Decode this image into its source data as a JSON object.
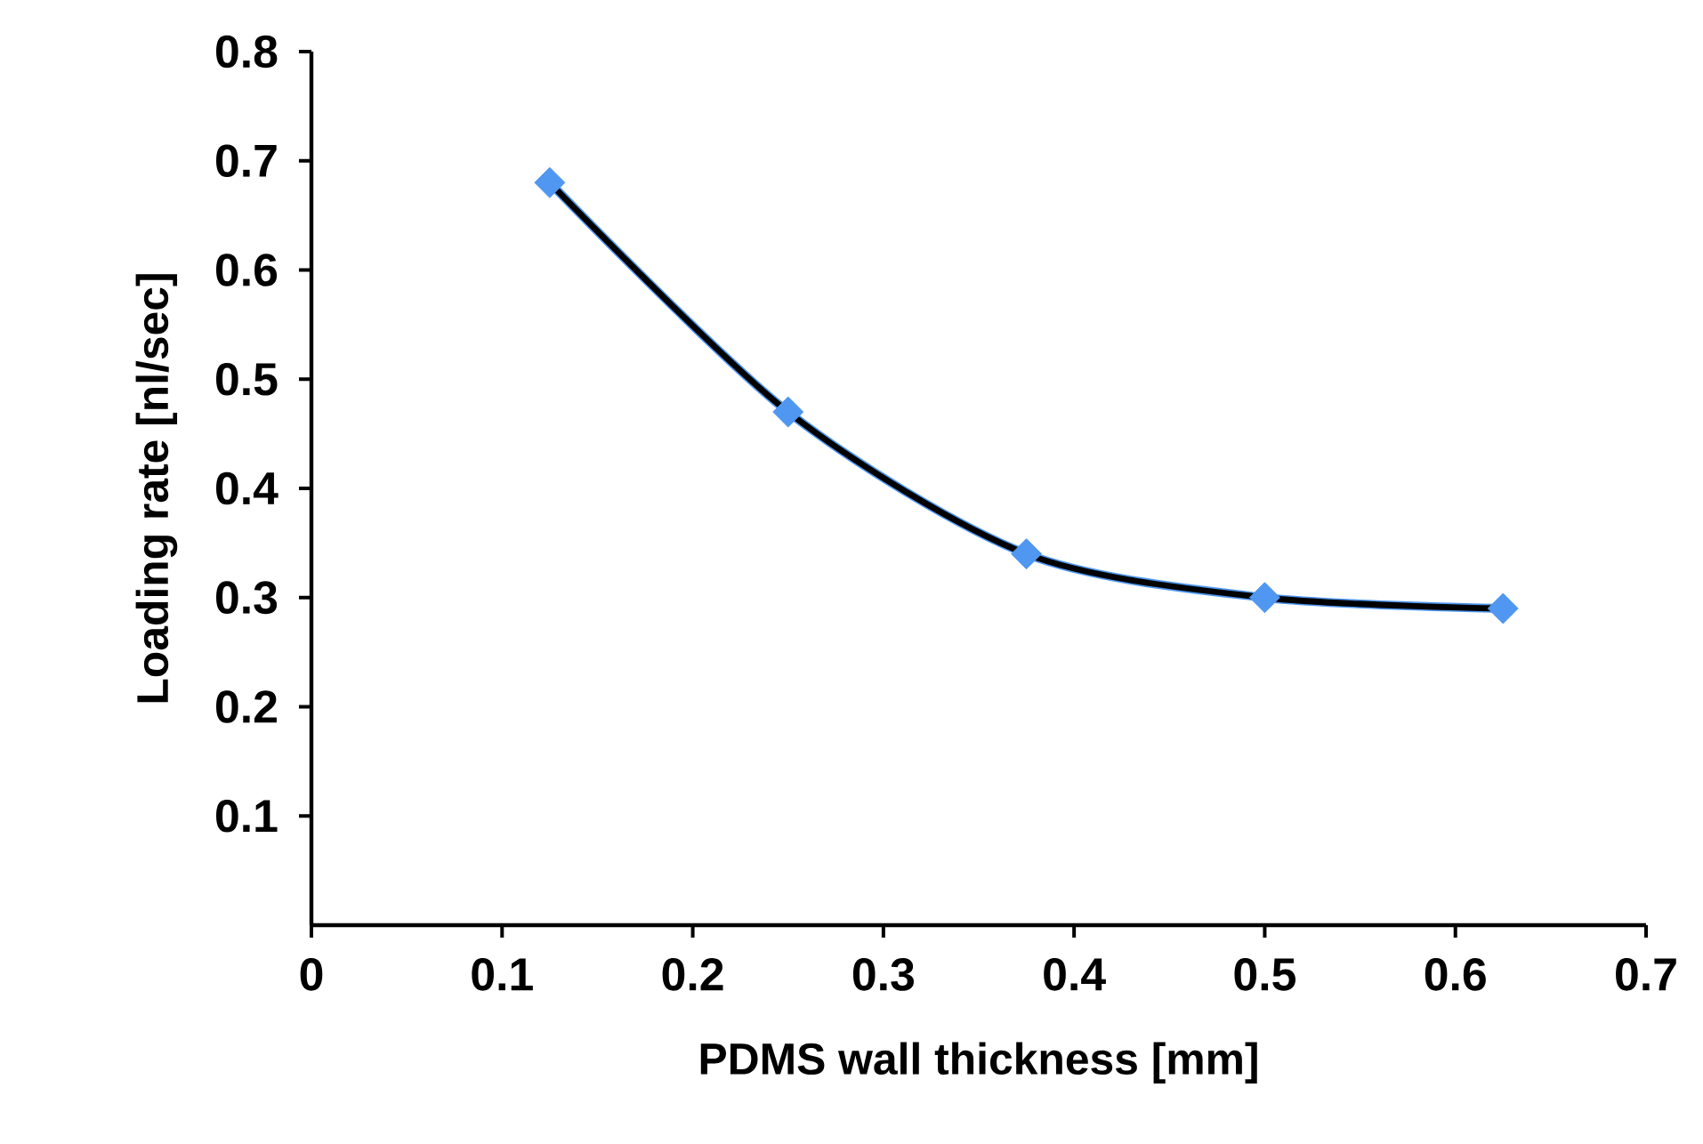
{
  "chart_data": {
    "type": "line",
    "xlabel": "PDMS wall thickness [mm]",
    "ylabel": "Loading rate [nl/sec]",
    "x": [
      0.125,
      0.25,
      0.375,
      0.5,
      0.625
    ],
    "series": [
      {
        "color": "#4f97f0",
        "values": [
          0.68,
          0.47,
          0.34,
          0.3,
          0.29
        ]
      }
    ],
    "xlim": [
      0,
      0.7
    ],
    "xticks": [
      0,
      0.1,
      0.2,
      0.3,
      0.4,
      0.5,
      0.6,
      0.7
    ],
    "ylim": [
      0,
      0.8
    ],
    "yticks": [
      0.1,
      0.2,
      0.3,
      0.4,
      0.5,
      0.6,
      0.7,
      0.8
    ],
    "grid": false,
    "marker": "diamond",
    "line_style": "solid"
  }
}
